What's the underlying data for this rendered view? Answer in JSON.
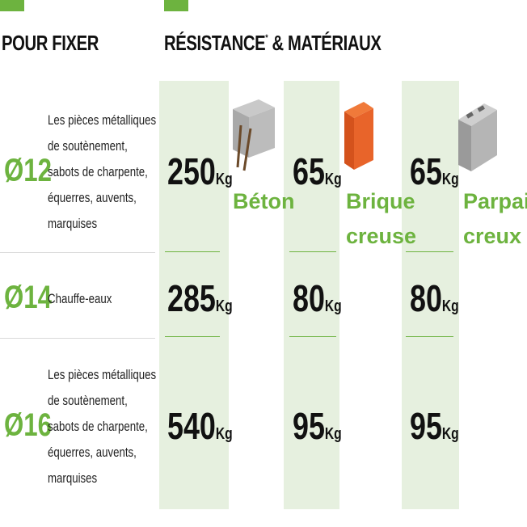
{
  "header": {
    "left_title": "POUR FIXER",
    "right_title": "RÉSISTANCE",
    "footnote_mark": "*",
    "right_title_rest": "& MATÉRIAUX"
  },
  "unit": "Kg",
  "materials": [
    "Béton",
    "Brique creuse",
    "Parpaing creux"
  ],
  "rows": [
    {
      "diameter": "Ø12",
      "use_lines": [
        "Les pièces métalliques",
        "de soutènement,",
        "sabots de charpente,",
        "équerres, auvents,",
        "marquises"
      ],
      "values": [
        250,
        65,
        65
      ]
    },
    {
      "diameter": "Ø14",
      "use_lines": [
        "Chauffe-eaux"
      ],
      "values": [
        285,
        80,
        80
      ]
    },
    {
      "diameter": "Ø16",
      "use_lines": [
        "Les pièces métalliques",
        "de soutènement,",
        "sabots de charpente,",
        "équerres, auvents,",
        "marquises"
      ],
      "values": [
        540,
        95,
        95
      ]
    }
  ]
}
